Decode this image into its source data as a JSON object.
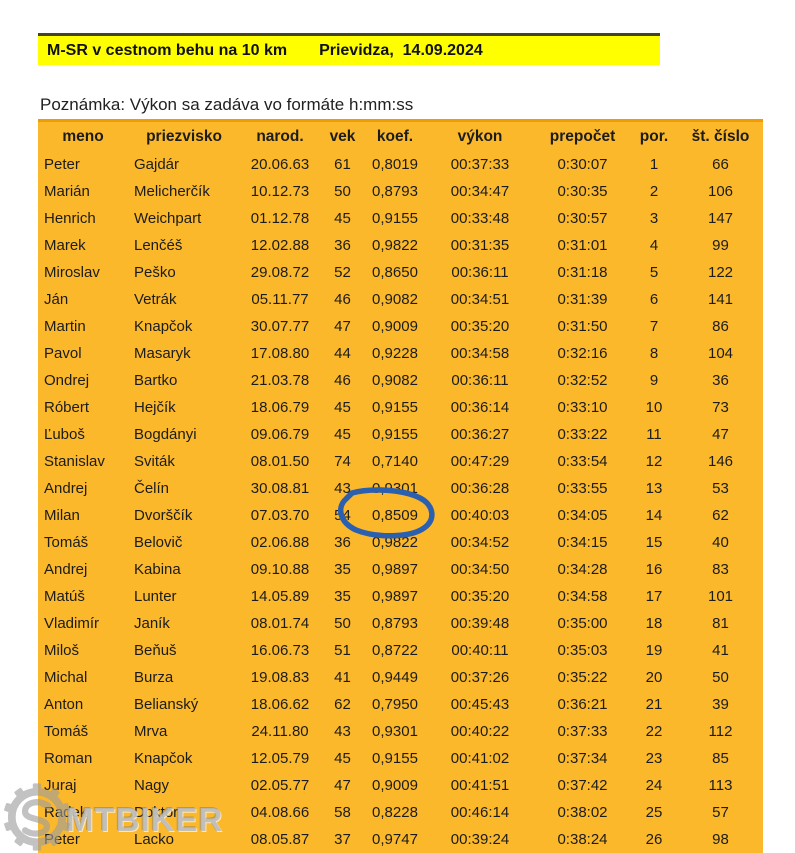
{
  "title": {
    "left": "M-SR v cestnom behu na 10 km",
    "right": "Prievidza,  14.09.2024"
  },
  "note": "Poznámka: Výkon sa zadáva vo formáte h:mm:ss",
  "table": {
    "columns": [
      "meno",
      "priezvisko",
      "narod.",
      "vek",
      "koef.",
      "výkon",
      "prepočet",
      "por.",
      "št. číslo"
    ],
    "column_keys": [
      "meno",
      "priezvisko",
      "narod",
      "vek",
      "koef",
      "vykon",
      "prepocet",
      "por",
      "st-cislo"
    ],
    "rows": [
      [
        "Peter",
        "Gajdár",
        "20.06.63",
        "61",
        "0,8019",
        "00:37:33",
        "0:30:07",
        "1",
        "66"
      ],
      [
        "Marián",
        "Melicherčík",
        "10.12.73",
        "50",
        "0,8793",
        "00:34:47",
        "0:30:35",
        "2",
        "106"
      ],
      [
        "Henrich",
        "Weichpart",
        "01.12.78",
        "45",
        "0,9155",
        "00:33:48",
        "0:30:57",
        "3",
        "147"
      ],
      [
        "Marek",
        "Lenčéš",
        "12.02.88",
        "36",
        "0,9822",
        "00:31:35",
        "0:31:01",
        "4",
        "99"
      ],
      [
        "Miroslav",
        "Peško",
        "29.08.72",
        "52",
        "0,8650",
        "00:36:11",
        "0:31:18",
        "5",
        "122"
      ],
      [
        "Ján",
        "Vetrák",
        "05.11.77",
        "46",
        "0,9082",
        "00:34:51",
        "0:31:39",
        "6",
        "141"
      ],
      [
        "Martin",
        "Knapčok",
        "30.07.77",
        "47",
        "0,9009",
        "00:35:20",
        "0:31:50",
        "7",
        "86"
      ],
      [
        "Pavol",
        "Masaryk",
        "17.08.80",
        "44",
        "0,9228",
        "00:34:58",
        "0:32:16",
        "8",
        "104"
      ],
      [
        "Ondrej",
        "Bartko",
        "21.03.78",
        "46",
        "0,9082",
        "00:36:11",
        "0:32:52",
        "9",
        "36"
      ],
      [
        "Róbert",
        "Hejčík",
        "18.06.79",
        "45",
        "0,9155",
        "00:36:14",
        "0:33:10",
        "10",
        "73"
      ],
      [
        "Ľuboš",
        "Bogdányi",
        "09.06.79",
        "45",
        "0,9155",
        "00:36:27",
        "0:33:22",
        "11",
        "47"
      ],
      [
        "Stanislav",
        "Sviták",
        "08.01.50",
        "74",
        "0,7140",
        "00:47:29",
        "0:33:54",
        "12",
        "146"
      ],
      [
        "Andrej",
        "Čelín",
        "30.08.81",
        "43",
        "0,9301",
        "00:36:28",
        "0:33:55",
        "13",
        "53"
      ],
      [
        "Milan",
        "Dvorščík",
        "07.03.70",
        "54",
        "0,8509",
        "00:40:03",
        "0:34:05",
        "14",
        "62"
      ],
      [
        "Tomáš",
        "Belovič",
        "02.06.88",
        "36",
        "0,9822",
        "00:34:52",
        "0:34:15",
        "15",
        "40"
      ],
      [
        "Andrej",
        "Kabina",
        "09.10.88",
        "35",
        "0,9897",
        "00:34:50",
        "0:34:28",
        "16",
        "83"
      ],
      [
        "Matúš",
        "Lunter",
        "14.05.89",
        "35",
        "0,9897",
        "00:35:20",
        "0:34:58",
        "17",
        "101"
      ],
      [
        "Vladimír",
        "Janík",
        "08.01.74",
        "50",
        "0,8793",
        "00:39:48",
        "0:35:00",
        "18",
        "81"
      ],
      [
        "Miloš",
        "Beňuš",
        "16.06.73",
        "51",
        "0,8722",
        "00:40:11",
        "0:35:03",
        "19",
        "41"
      ],
      [
        "Michal",
        "Burza",
        "19.08.83",
        "41",
        "0,9449",
        "00:37:26",
        "0:35:22",
        "20",
        "50"
      ],
      [
        "Anton",
        "Belianský",
        "18.06.62",
        "62",
        "0,7950",
        "00:45:43",
        "0:36:21",
        "21",
        "39"
      ],
      [
        "Tomáš",
        "Mrva",
        "24.11.80",
        "43",
        "0,9301",
        "00:40:22",
        "0:37:33",
        "22",
        "112"
      ],
      [
        "Roman",
        "Knapčok",
        "12.05.79",
        "45",
        "0,9155",
        "00:41:02",
        "0:37:34",
        "23",
        "85"
      ],
      [
        "Juraj",
        "Nagy",
        "02.05.77",
        "47",
        "0,9009",
        "00:41:51",
        "0:37:42",
        "24",
        "113"
      ],
      [
        "Radek",
        "Doktor",
        "04.08.66",
        "58",
        "0,8228",
        "00:46:14",
        "0:38:02",
        "25",
        "57"
      ],
      [
        "Peter",
        "Lacko",
        "08.05.87",
        "37",
        "0,9747",
        "00:39:24",
        "0:38:24",
        "26",
        "98"
      ]
    ],
    "highlight": {
      "row_number": "14",
      "column": "koef.",
      "value": "0,8509",
      "annotation": "hand-drawn blue circle"
    }
  },
  "watermark": {
    "text": "MTBIKER",
    "icon": "gear-icon"
  },
  "colors": {
    "title_bg": "#ffff00",
    "table_bg": "#fbb82b",
    "annotation_blue": "#2b5fb0",
    "watermark_gray": "#bababa",
    "text": "#1c1c1c"
  }
}
